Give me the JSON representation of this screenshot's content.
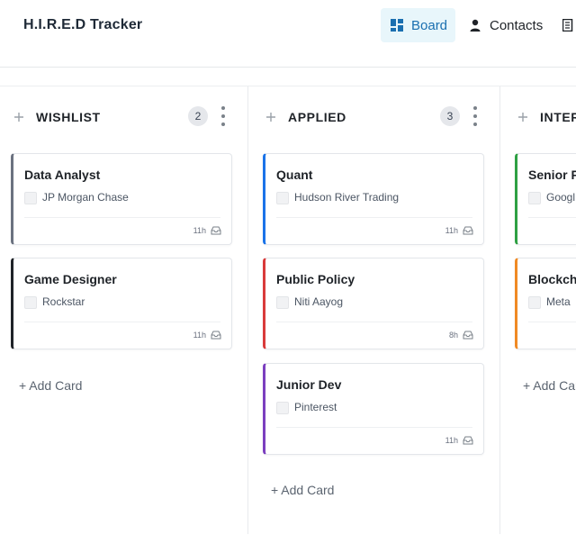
{
  "app": {
    "title": "H.I.R.E.D Tracker"
  },
  "nav": {
    "board": "Board",
    "contacts": "Contacts"
  },
  "colors": {
    "accent": "#1a6fb0",
    "wishlist_card_1": "#6b7280",
    "wishlist_card_2": "#1f2328",
    "applied_card_1": "#1a73e8",
    "applied_card_2": "#d93a3a",
    "applied_card_3": "#7b3fbf",
    "interview_card_1": "#2ea043",
    "interview_card_2": "#f08a24"
  },
  "columns": [
    {
      "title": "WISHLIST",
      "count": "2",
      "add_label": "+ Add Card",
      "cards": [
        {
          "title": "Data Analyst",
          "company": "JP Morgan Chase",
          "time": "11h"
        },
        {
          "title": "Game Designer",
          "company": "Rockstar",
          "time": "11h"
        }
      ]
    },
    {
      "title": "APPLIED",
      "count": "3",
      "add_label": "+ Add Card",
      "cards": [
        {
          "title": "Quant",
          "company": "Hudson River Trading",
          "time": "11h"
        },
        {
          "title": "Public Policy",
          "company": "Niti Aayog",
          "time": "8h"
        },
        {
          "title": "Junior Dev",
          "company": "Pinterest",
          "time": "11h"
        }
      ]
    },
    {
      "title": "INTER",
      "add_label": "+ Add Car",
      "cards": [
        {
          "title": "Senior R",
          "company": "Googl"
        },
        {
          "title": "Blockcha",
          "company": "Meta"
        }
      ]
    }
  ]
}
